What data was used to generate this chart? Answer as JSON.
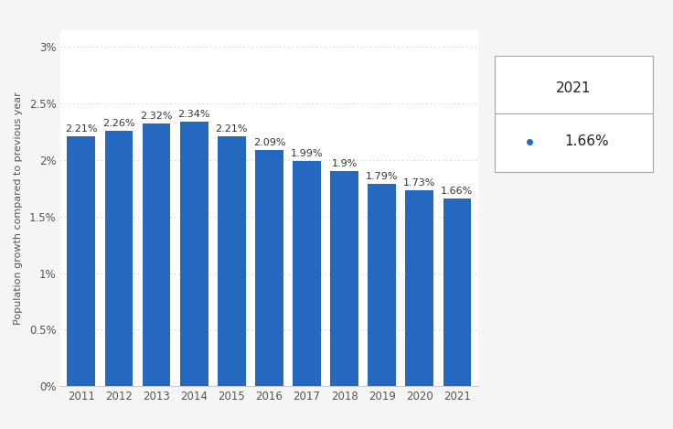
{
  "years": [
    2011,
    2012,
    2013,
    2014,
    2015,
    2016,
    2017,
    2018,
    2019,
    2020,
    2021
  ],
  "values": [
    2.21,
    2.26,
    2.32,
    2.34,
    2.21,
    2.09,
    1.99,
    1.9,
    1.79,
    1.73,
    1.66
  ],
  "labels": [
    "2.21%",
    "2.26%",
    "2.32%",
    "2.34%",
    "2.21%",
    "2.09%",
    "1.99%",
    "1.9%",
    "1.79%",
    "1.73%",
    "1.66%"
  ],
  "bar_color": "#2468C0",
  "background_color": "#f5f5f5",
  "plot_bg_color": "#ffffff",
  "ylabel": "Population growth compared to previous year",
  "yticks": [
    0.0,
    0.5,
    1.0,
    1.5,
    2.0,
    2.5,
    3.0
  ],
  "ytick_labels": [
    "0%",
    "0.5%",
    "1%",
    "1.5%",
    "2%",
    "2.5%",
    "3%"
  ],
  "ylim": [
    0,
    3.15
  ],
  "legend_year": "2021",
  "legend_value": "1.66%",
  "legend_dot_color": "#2468C0",
  "grid_color": "#cccccc",
  "label_fontsize": 8,
  "tick_fontsize": 8.5,
  "ylabel_fontsize": 8,
  "bar_width": 0.75,
  "fig_width": 7.36,
  "fig_height": 4.69
}
